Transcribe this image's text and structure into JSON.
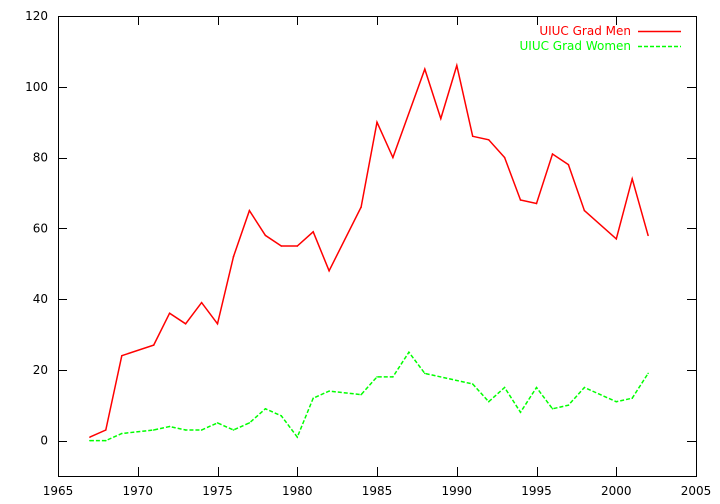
{
  "chart_data": {
    "type": "line",
    "title": "",
    "xlabel": "",
    "ylabel": "",
    "xlim": [
      1965,
      2005
    ],
    "ylim": [
      -10,
      120
    ],
    "xticks": [
      "1965",
      "1970",
      "1975",
      "1980",
      "1985",
      "1990",
      "1995",
      "2000",
      "2005"
    ],
    "yticks": [
      "0",
      "20",
      "40",
      "60",
      "80",
      "100",
      "120"
    ],
    "grid": false,
    "legend_position": "top-right",
    "series": [
      {
        "name": "UIUC Grad Men",
        "color": "#ff0000",
        "dash": "solid",
        "x": [
          1967,
          1968,
          1969,
          1971,
          1972,
          1973,
          1974,
          1975,
          1976,
          1977,
          1978,
          1979,
          1980,
          1981,
          1982,
          1984,
          1985,
          1986,
          1988,
          1989,
          1990,
          1991,
          1992,
          1993,
          1994,
          1995,
          1996,
          1997,
          1998,
          2000,
          2001,
          2002
        ],
        "values": [
          1,
          3,
          24,
          27,
          36,
          33,
          39,
          33,
          52,
          65,
          58,
          55,
          55,
          59,
          48,
          66,
          90,
          80,
          105,
          91,
          106,
          86,
          85,
          80,
          68,
          67,
          81,
          78,
          65,
          57,
          74,
          58
        ]
      },
      {
        "name": "UIUC Grad Women",
        "color": "#00ff00",
        "dash": "dashed",
        "x": [
          1967,
          1968,
          1969,
          1971,
          1972,
          1973,
          1974,
          1975,
          1976,
          1977,
          1978,
          1979,
          1980,
          1981,
          1982,
          1984,
          1985,
          1986,
          1987,
          1988,
          1991,
          1992,
          1993,
          1994,
          1995,
          1996,
          1997,
          1998,
          2000,
          2001,
          2002
        ],
        "values": [
          0,
          0,
          2,
          3,
          4,
          3,
          3,
          5,
          3,
          5,
          9,
          7,
          1,
          12,
          14,
          13,
          18,
          18,
          25,
          19,
          16,
          11,
          15,
          8,
          15,
          9,
          10,
          15,
          11,
          12,
          19
        ]
      }
    ]
  }
}
